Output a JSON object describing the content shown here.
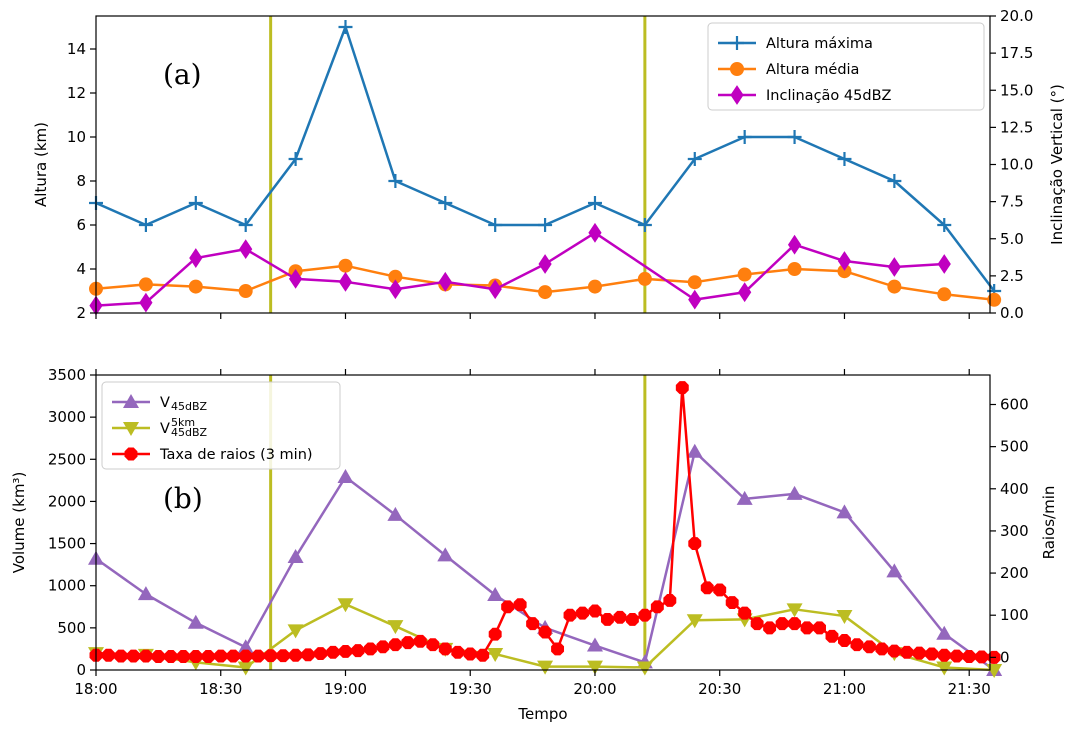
{
  "chart_data": [
    {
      "type": "line",
      "panel_label": "(a)",
      "x_ticks": [
        "18:00",
        "18:30",
        "19:00",
        "19:30",
        "20:00",
        "20:30",
        "21:00",
        "21:30"
      ],
      "xlim": [
        "18:00",
        "21:35"
      ],
      "ylabel": "Altura (km)",
      "ylim": [
        2,
        15.5
      ],
      "yticks": [
        "2",
        "4",
        "6",
        "8",
        "10",
        "12",
        "14"
      ],
      "y2label": "Inclinação Vertical (°)",
      "y2lim": [
        0,
        20
      ],
      "y2ticks": [
        "0.0",
        "2.5",
        "5.0",
        "7.5",
        "10.0",
        "12.5",
        "15.0",
        "17.5",
        "20.0"
      ],
      "vlines": [
        "18:42",
        "20:12"
      ],
      "legend_position": "top-right",
      "series": [
        {
          "name": "Altura máxima",
          "axis": "left",
          "color": "#1f77b4",
          "marker": "plus",
          "x": [
            "18:00",
            "18:12",
            "18:24",
            "18:36",
            "18:48",
            "19:00",
            "19:12",
            "19:24",
            "19:36",
            "19:48",
            "20:00",
            "20:12",
            "20:24",
            "20:36",
            "20:48",
            "21:00",
            "21:12",
            "21:24",
            "21:36"
          ],
          "y": [
            7,
            6,
            7,
            6,
            9,
            15,
            8,
            7,
            6,
            6,
            7,
            6,
            9,
            10,
            10,
            9,
            8,
            6,
            3
          ]
        },
        {
          "name": "Altura média",
          "axis": "left",
          "color": "#ff7f0e",
          "marker": "circle",
          "x": [
            "18:00",
            "18:12",
            "18:24",
            "18:36",
            "18:48",
            "19:00",
            "19:12",
            "19:24",
            "19:36",
            "19:48",
            "20:00",
            "20:12",
            "20:24",
            "20:36",
            "20:48",
            "21:00",
            "21:12",
            "21:24",
            "21:36"
          ],
          "y": [
            3.1,
            3.3,
            3.2,
            3.0,
            3.9,
            4.15,
            3.65,
            3.3,
            3.25,
            2.95,
            3.2,
            3.55,
            3.4,
            3.75,
            4.0,
            3.9,
            3.2,
            2.85,
            2.6
          ]
        },
        {
          "name": "Inclinação 45dBZ",
          "axis": "right",
          "color": "#c000c0",
          "marker": "diamond",
          "x": [
            "18:00",
            "18:12",
            "18:24",
            "18:36",
            "18:48",
            "19:00",
            "19:12",
            "19:24",
            "19:36",
            "19:48",
            "20:00",
            "20:24",
            "20:36",
            "20:48",
            "21:00",
            "21:12",
            "21:24"
          ],
          "y": [
            0.5,
            0.7,
            3.7,
            4.3,
            2.3,
            2.1,
            1.6,
            2.1,
            1.6,
            3.3,
            5.4,
            0.9,
            1.4,
            4.6,
            3.5,
            3.1,
            3.3
          ]
        }
      ]
    },
    {
      "type": "line",
      "panel_label": "(b)",
      "x_ticks": [
        "18:00",
        "18:30",
        "19:00",
        "19:30",
        "20:00",
        "20:30",
        "21:00",
        "21:30"
      ],
      "xlim": [
        "18:00",
        "21:35"
      ],
      "xlabel": "Tempo",
      "ylabel": "Volume (km³)",
      "ylim": [
        0,
        3500
      ],
      "yticks": [
        "0",
        "500",
        "1000",
        "1500",
        "2000",
        "2500",
        "3000",
        "3500"
      ],
      "y2label": "Raios/min",
      "y2lim": [
        -30,
        670
      ],
      "y2ticks": [
        "0",
        "100",
        "200",
        "300",
        "400",
        "500",
        "600"
      ],
      "vlines": [
        "18:42",
        "20:12"
      ],
      "legend_position": "top-left",
      "series": [
        {
          "name": "V",
          "name_sub": "45dBZ",
          "axis": "left",
          "color": "#9467bd",
          "marker": "triangle-up",
          "x": [
            "18:00",
            "18:12",
            "18:24",
            "18:36",
            "18:48",
            "19:00",
            "19:12",
            "19:24",
            "19:36",
            "19:48",
            "20:00",
            "20:12",
            "20:24",
            "20:36",
            "20:48",
            "21:00",
            "21:12",
            "21:24",
            "21:36"
          ],
          "y": [
            1320,
            900,
            560,
            270,
            1340,
            2290,
            1840,
            1360,
            890,
            500,
            290,
            90,
            2590,
            2030,
            2090,
            1870,
            1170,
            430,
            0
          ]
        },
        {
          "name": "V",
          "name_sub": "45dBZ",
          "name_sup": "5km",
          "axis": "left",
          "color": "#bcbd22",
          "marker": "triangle-down",
          "x": [
            "18:00",
            "18:12",
            "18:24",
            "18:36",
            "18:48",
            "19:00",
            "19:12",
            "19:24",
            "19:36",
            "19:48",
            "20:00",
            "20:12",
            "20:24",
            "20:36",
            "20:48",
            "21:00",
            "21:12",
            "21:24",
            "21:36"
          ],
          "y": [
            200,
            180,
            90,
            30,
            470,
            780,
            520,
            250,
            190,
            40,
            40,
            30,
            590,
            600,
            720,
            640,
            200,
            30,
            0
          ]
        },
        {
          "name": "Taxa de raios (3 min)",
          "axis": "right",
          "color": "#ff0000",
          "marker": "octagon",
          "x": [
            "18:00",
            "18:03",
            "18:06",
            "18:09",
            "18:12",
            "18:15",
            "18:18",
            "18:21",
            "18:24",
            "18:27",
            "18:30",
            "18:33",
            "18:36",
            "18:39",
            "18:42",
            "18:45",
            "18:48",
            "18:51",
            "18:54",
            "18:57",
            "19:00",
            "19:03",
            "19:06",
            "19:09",
            "19:12",
            "19:15",
            "19:18",
            "19:21",
            "19:24",
            "19:27",
            "19:30",
            "19:33",
            "19:36",
            "19:39",
            "19:42",
            "19:45",
            "19:48",
            "19:51",
            "19:54",
            "19:57",
            "20:00",
            "20:03",
            "20:06",
            "20:09",
            "20:12",
            "20:15",
            "20:18",
            "20:21",
            "20:24",
            "20:27",
            "20:30",
            "20:33",
            "20:36",
            "20:39",
            "20:42",
            "20:45",
            "20:48",
            "20:51",
            "20:54",
            "20:57",
            "21:00",
            "21:03",
            "21:06",
            "21:09",
            "21:12",
            "21:15",
            "21:18",
            "21:21",
            "21:24",
            "21:27",
            "21:30",
            "21:33",
            "21:36"
          ],
          "y": [
            5,
            5,
            3,
            3,
            3,
            2,
            2,
            2,
            2,
            2,
            3,
            3,
            3,
            3,
            4,
            4,
            5,
            6,
            9,
            12,
            14,
            16,
            20,
            25,
            30,
            35,
            38,
            30,
            20,
            12,
            8,
            5,
            55,
            120,
            125,
            80,
            60,
            20,
            100,
            105,
            110,
            90,
            95,
            90,
            100,
            120,
            135,
            640,
            270,
            165,
            160,
            130,
            105,
            80,
            70,
            80,
            80,
            70,
            70,
            50,
            40,
            30,
            25,
            20,
            15,
            12,
            10,
            8,
            5,
            3,
            2,
            1,
            0
          ]
        }
      ]
    }
  ]
}
